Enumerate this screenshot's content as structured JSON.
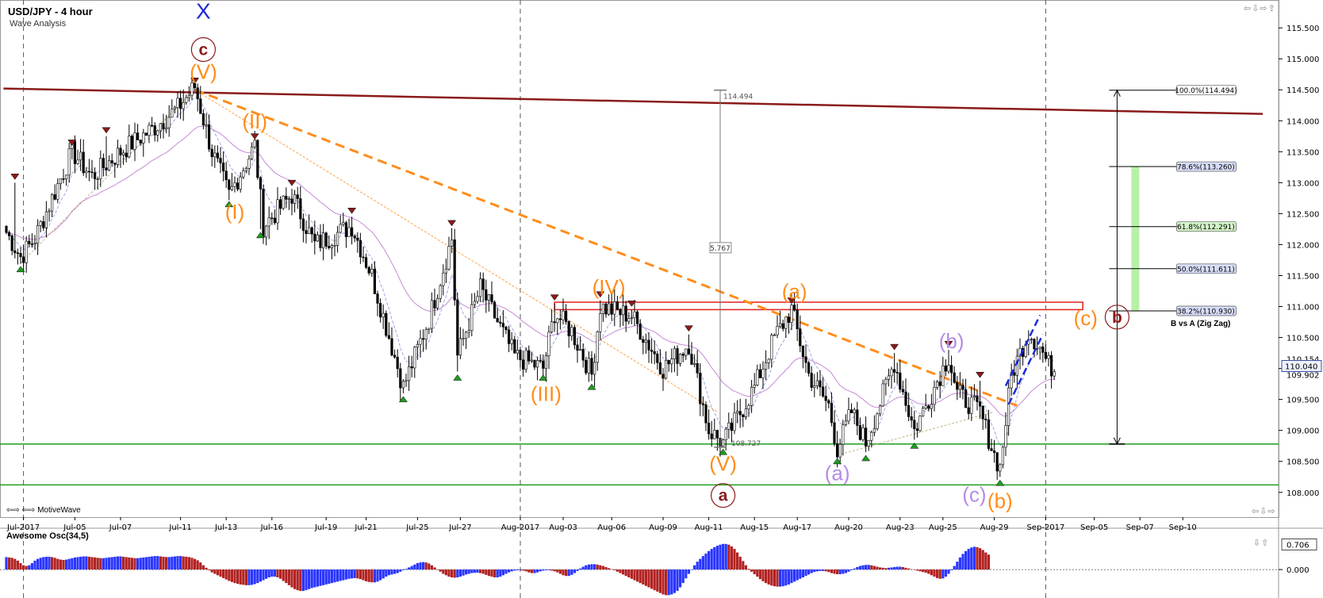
{
  "header": {
    "title": "USD/JPY - 4 hour",
    "subtitle": "Wave Analysis"
  },
  "footer": {
    "brand": "⇦⇨ ⇦⇨ MotiveWave"
  },
  "controls": {
    "top": "⇦⇩⇨⇪",
    "bottom": "⇦⇩⇨",
    "osc": "⇩⇧"
  },
  "colors": {
    "bull": "#ffffff",
    "bear": "#000000",
    "ema_fast": "#9aa8e6",
    "ema_slow": "#c58ad6",
    "trend_dark": "#8b1a1a",
    "orange": "#ff8c1a",
    "green": "#1e9e1e",
    "red": "#e0201e",
    "violet": "#b78be6",
    "blue": "#1c2bd6",
    "osc_up": "#2a36ff",
    "osc_down": "#b22222"
  },
  "chart_data": [
    {
      "type": "candlestick",
      "title": "USD/JPY - 4 hour",
      "subtitle": "Wave Analysis",
      "ylim": [
        107.6,
        115.95
      ],
      "y_ticks": [
        "108.000",
        "108.500",
        "109.000",
        "109.500",
        "110.000",
        "110.500",
        "111.000",
        "111.500",
        "112.000",
        "112.500",
        "113.000",
        "113.500",
        "114.000",
        "114.500",
        "115.000",
        "115.500"
      ],
      "x_ticks": [
        "Jul-2017",
        "Jul-05",
        "Jul-07",
        "Jul-11",
        "Jul-13",
        "Jul-16",
        "Jul-19",
        "Jul-21",
        "Jul-25",
        "Jul-27",
        "Aug-2017",
        "Aug-03",
        "Aug-06",
        "Aug-09",
        "Aug-11",
        "Aug-15",
        "Aug-17",
        "Aug-20",
        "Aug-23",
        "Aug-25",
        "Aug-29",
        "Sep-2017",
        "Sep-05",
        "Sep-07",
        "Sep-10"
      ],
      "x_tick_index": [
        6,
        24,
        40,
        61,
        77,
        93,
        112,
        126,
        144,
        159,
        180,
        195,
        212,
        230,
        246,
        262,
        277,
        295,
        313,
        328,
        346,
        364,
        381,
        397,
        412
      ],
      "current_price": "110.040",
      "price_labels_right": [
        "110.154",
        "109.902"
      ],
      "pivot_highs": [
        {
          "i": 3,
          "v": 113.0
        },
        {
          "i": 23,
          "v": 113.55
        },
        {
          "i": 35,
          "v": 113.75
        },
        {
          "i": 66,
          "v": 114.55
        },
        {
          "i": 87,
          "v": 113.65
        },
        {
          "i": 100,
          "v": 112.9
        },
        {
          "i": 121,
          "v": 112.45
        },
        {
          "i": 156,
          "v": 112.25
        },
        {
          "i": 192,
          "v": 111.05
        },
        {
          "i": 208,
          "v": 111.1
        },
        {
          "i": 219,
          "v": 110.95
        },
        {
          "i": 239,
          "v": 110.55
        },
        {
          "i": 275,
          "v": 111.0
        },
        {
          "i": 311,
          "v": 110.25
        },
        {
          "i": 330,
          "v": 110.3
        },
        {
          "i": 341,
          "v": 109.8
        }
      ],
      "pivot_lows": [
        {
          "i": 5,
          "v": 111.7
        },
        {
          "i": 78,
          "v": 112.75
        },
        {
          "i": 89,
          "v": 112.25
        },
        {
          "i": 139,
          "v": 109.6
        },
        {
          "i": 158,
          "v": 109.95
        },
        {
          "i": 188,
          "v": 109.95
        },
        {
          "i": 205,
          "v": 109.8
        },
        {
          "i": 251,
          "v": 108.75
        },
        {
          "i": 291,
          "v": 108.6
        },
        {
          "i": 301,
          "v": 108.65
        },
        {
          "i": 318,
          "v": 108.85
        },
        {
          "i": 348,
          "v": 108.25
        }
      ],
      "waypoints": [
        [
          0,
          112.2
        ],
        [
          5,
          111.8
        ],
        [
          10,
          112.1
        ],
        [
          23,
          113.5
        ],
        [
          30,
          113.1
        ],
        [
          40,
          113.5
        ],
        [
          52,
          113.9
        ],
        [
          60,
          114.2
        ],
        [
          66,
          114.55
        ],
        [
          72,
          113.5
        ],
        [
          78,
          112.8
        ],
        [
          87,
          113.6
        ],
        [
          90,
          112.3
        ],
        [
          100,
          112.8
        ],
        [
          108,
          112.0
        ],
        [
          121,
          112.3
        ],
        [
          128,
          111.5
        ],
        [
          139,
          109.7
        ],
        [
          148,
          110.8
        ],
        [
          156,
          112.1
        ],
        [
          158,
          110.2
        ],
        [
          166,
          111.3
        ],
        [
          178,
          110.2
        ],
        [
          188,
          110.0
        ],
        [
          192,
          110.9
        ],
        [
          198,
          110.6
        ],
        [
          205,
          109.9
        ],
        [
          208,
          111.0
        ],
        [
          219,
          110.85
        ],
        [
          230,
          110.0
        ],
        [
          239,
          110.4
        ],
        [
          246,
          109.0
        ],
        [
          251,
          108.8
        ],
        [
          256,
          109.2
        ],
        [
          262,
          109.7
        ],
        [
          269,
          110.5
        ],
        [
          275,
          110.95
        ],
        [
          281,
          109.9
        ],
        [
          288,
          109.4
        ],
        [
          291,
          108.7
        ],
        [
          296,
          109.3
        ],
        [
          301,
          108.8
        ],
        [
          311,
          110.1
        ],
        [
          318,
          109.0
        ],
        [
          325,
          109.7
        ],
        [
          330,
          110.2
        ],
        [
          333,
          109.6
        ],
        [
          341,
          109.3
        ],
        [
          346,
          108.6
        ],
        [
          348,
          108.4
        ],
        [
          352,
          109.9
        ],
        [
          358,
          110.6
        ],
        [
          362,
          110.35
        ],
        [
          365,
          110.05
        ],
        [
          367,
          110.0
        ]
      ],
      "trend_lines": [
        {
          "name": "long-term-resistance",
          "from": [
            -1,
            114.52
          ],
          "to": [
            440,
            114.11
          ],
          "color": "#8b1a1a"
        },
        {
          "name": "orange-downtrend",
          "from": [
            66,
            114.5
          ],
          "to": [
            354,
            109.4
          ],
          "color": "#ff8c1a",
          "style": "dashed"
        }
      ],
      "horizontal_lines": [
        {
          "y": 108.78,
          "color": "#1e9e1e"
        },
        {
          "y": 108.12,
          "color": "#1e9e1e"
        }
      ],
      "resistance_box": {
        "i0": 192,
        "i1": 377,
        "y0": 110.95,
        "y1": 111.07,
        "color": "#e0201e"
      },
      "measure": {
        "i": 250,
        "high": 114.494,
        "low": 108.727,
        "label": "5.767"
      },
      "fibonacci": {
        "i": 389,
        "high": 114.494,
        "low": 108.78,
        "levels": [
          {
            "label": "100.0%(114.494)",
            "value": 114.494
          },
          {
            "label": "78.6%(113.260)",
            "value": 113.26
          },
          {
            "label": "61.8%(112.291)",
            "value": 112.291
          },
          {
            "label": "50.0%(111.611)",
            "value": 111.611
          },
          {
            "label": "38.2%(110.930)",
            "value": 110.93
          }
        ],
        "zone": [
          110.93,
          113.26
        ],
        "caption": "B vs A (Zig Zag)"
      },
      "wave_labels": [
        {
          "text": "X",
          "i": 69,
          "y": 115.75,
          "color": "#1c2bd6",
          "style": "plain"
        },
        {
          "text": "c",
          "i": 69,
          "y": 115.15,
          "color": "#8b1a1a",
          "style": "circle"
        },
        {
          "text": "(V)",
          "i": 69,
          "y": 114.78,
          "color": "#ff8c1a",
          "style": "plain"
        },
        {
          "text": "(II)",
          "i": 87,
          "y": 113.98,
          "color": "#ff8c1a",
          "style": "plain"
        },
        {
          "text": "(I)",
          "i": 80,
          "y": 112.52,
          "color": "#ff8c1a",
          "style": "plain"
        },
        {
          "text": "(III)",
          "i": 189,
          "y": 109.58,
          "color": "#ff8c1a",
          "style": "plain"
        },
        {
          "text": "(IV)",
          "i": 211,
          "y": 111.3,
          "color": "#ff8c1a",
          "style": "plain"
        },
        {
          "text": "(V)",
          "i": 251,
          "y": 108.45,
          "color": "#ff8c1a",
          "style": "plain"
        },
        {
          "text": "a",
          "i": 251,
          "y": 107.95,
          "color": "#8b1a1a",
          "style": "circle"
        },
        {
          "text": "(a)",
          "i": 276,
          "y": 111.23,
          "color": "#ff8c1a",
          "style": "plain"
        },
        {
          "text": "(a)",
          "i": 291,
          "y": 108.3,
          "color": "#b78be6",
          "style": "plain"
        },
        {
          "text": "(b)",
          "i": 331,
          "y": 110.43,
          "color": "#b78be6",
          "style": "plain"
        },
        {
          "text": "(c)",
          "i": 339,
          "y": 107.95,
          "color": "#b78be6",
          "style": "plain"
        },
        {
          "text": "(b)",
          "i": 348,
          "y": 107.85,
          "color": "#ff8c1a",
          "style": "plain"
        },
        {
          "text": "(c)",
          "i": 378,
          "y": 110.8,
          "color": "#ff8c1a",
          "style": "plain"
        },
        {
          "text": "b",
          "i": 389,
          "y": 110.83,
          "color": "#8b1a1a",
          "style": "circle"
        }
      ]
    },
    {
      "type": "bar",
      "title": "Awesome Osc(34,5)",
      "y_ticks": [
        "0.706",
        "0.000"
      ],
      "ylim": [
        -0.8,
        0.85
      ],
      "values": [
        0.35,
        0.34,
        0.33,
        0.3,
        0.25,
        0.18,
        0.12,
        0.1,
        0.12,
        0.18,
        0.25,
        0.3,
        0.33,
        0.35,
        0.36,
        0.36,
        0.35,
        0.33,
        0.3,
        0.28,
        0.27,
        0.28,
        0.3,
        0.32,
        0.34,
        0.35,
        0.36,
        0.37,
        0.37,
        0.36,
        0.35,
        0.34,
        0.33,
        0.32,
        0.32,
        0.33,
        0.34,
        0.35,
        0.36,
        0.37,
        0.37,
        0.36,
        0.35,
        0.34,
        0.33,
        0.32,
        0.32,
        0.33,
        0.34,
        0.35,
        0.36,
        0.37,
        0.38,
        0.38,
        0.37,
        0.36,
        0.35,
        0.35,
        0.36,
        0.37,
        0.38,
        0.38,
        0.37,
        0.36,
        0.35,
        0.33,
        0.3,
        0.26,
        0.2,
        0.12,
        0.05,
        -0.02,
        -0.08,
        -0.12,
        -0.16,
        -0.2,
        -0.24,
        -0.28,
        -0.32,
        -0.35,
        -0.38,
        -0.4,
        -0.42,
        -0.43,
        -0.44,
        -0.44,
        -0.43,
        -0.41,
        -0.38,
        -0.34,
        -0.3,
        -0.26,
        -0.22,
        -0.2,
        -0.2,
        -0.22,
        -0.26,
        -0.32,
        -0.38,
        -0.44,
        -0.5,
        -0.55,
        -0.58,
        -0.6,
        -0.6,
        -0.58,
        -0.55,
        -0.52,
        -0.5,
        -0.48,
        -0.46,
        -0.44,
        -0.42,
        -0.4,
        -0.38,
        -0.36,
        -0.34,
        -0.32,
        -0.3,
        -0.28,
        -0.26,
        -0.25,
        -0.24,
        -0.25,
        -0.27,
        -0.3,
        -0.33,
        -0.35,
        -0.36,
        -0.36,
        -0.34,
        -0.3,
        -0.25,
        -0.2,
        -0.16,
        -0.14,
        -0.12,
        -0.1,
        -0.06,
        -0.02,
        0.02,
        0.06,
        0.1,
        0.14,
        0.18,
        0.2,
        0.21,
        0.2,
        0.17,
        0.12,
        0.06,
        0.0,
        -0.06,
        -0.12,
        -0.16,
        -0.2,
        -0.22,
        -0.23,
        -0.22,
        -0.2,
        -0.17,
        -0.14,
        -0.12,
        -0.1,
        -0.09,
        -0.09,
        -0.1,
        -0.12,
        -0.15,
        -0.18,
        -0.2,
        -0.22,
        -0.22,
        -0.2,
        -0.16,
        -0.12,
        -0.08,
        -0.05,
        -0.03,
        -0.02,
        -0.02,
        -0.03,
        -0.05,
        -0.08,
        -0.1,
        -0.1,
        -0.08,
        -0.05,
        -0.03,
        -0.02,
        -0.02,
        -0.03,
        -0.05,
        -0.08,
        -0.12,
        -0.16,
        -0.18,
        -0.18,
        -0.15,
        -0.1,
        -0.04,
        0.03,
        0.08,
        0.12,
        0.14,
        0.15,
        0.15,
        0.14,
        0.12,
        0.1,
        0.07,
        0.04,
        0.01,
        -0.02,
        -0.06,
        -0.1,
        -0.14,
        -0.18,
        -0.22,
        -0.26,
        -0.3,
        -0.34,
        -0.38,
        -0.42,
        -0.46,
        -0.5,
        -0.54,
        -0.58,
        -0.62,
        -0.66,
        -0.7,
        -0.72,
        -0.72,
        -0.7,
        -0.66,
        -0.6,
        -0.5,
        -0.38,
        -0.25,
        -0.12,
        0.0,
        0.12,
        0.22,
        0.3,
        0.38,
        0.45,
        0.52,
        0.58,
        0.63,
        0.67,
        0.7,
        0.72,
        0.72,
        0.7,
        0.65,
        0.58,
        0.48,
        0.36,
        0.24,
        0.12,
        0.02,
        -0.06,
        -0.13,
        -0.2,
        -0.27,
        -0.33,
        -0.38,
        -0.42,
        -0.45,
        -0.47,
        -0.48,
        -0.48,
        -0.47,
        -0.45,
        -0.42,
        -0.38,
        -0.34,
        -0.3,
        -0.26,
        -0.22,
        -0.18,
        -0.14,
        -0.1,
        -0.07,
        -0.05,
        -0.04,
        -0.04,
        -0.05,
        -0.07,
        -0.1,
        -0.12,
        -0.13,
        -0.13,
        -0.12,
        -0.1,
        -0.06,
        -0.02,
        0.03,
        0.07,
        0.1,
        0.12,
        0.13,
        0.13,
        0.12,
        0.1,
        0.08,
        0.06,
        0.05,
        0.04,
        0.05,
        0.06,
        0.07,
        0.08,
        0.08,
        0.07,
        0.05,
        0.03,
        0.01,
        -0.01,
        -0.03,
        -0.05,
        -0.07,
        -0.09,
        -0.12,
        -0.16,
        -0.2,
        -0.24,
        -0.26,
        -0.25,
        -0.2,
        -0.12,
        -0.02,
        0.1,
        0.22,
        0.34,
        0.44,
        0.52,
        0.58,
        0.62,
        0.64,
        0.63,
        0.6,
        0.55,
        0.48,
        0.42
      ]
    }
  ]
}
